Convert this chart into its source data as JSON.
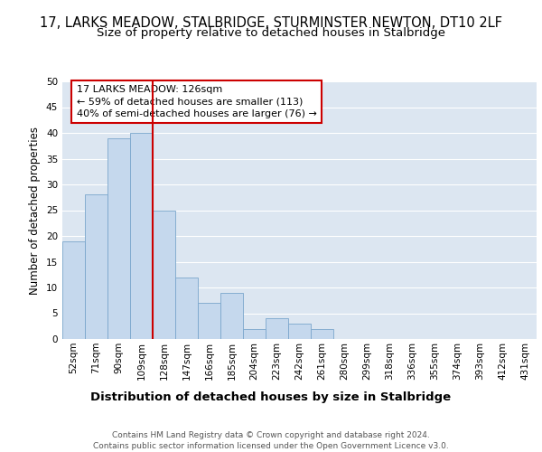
{
  "title": "17, LARKS MEADOW, STALBRIDGE, STURMINSTER NEWTON, DT10 2LF",
  "subtitle": "Size of property relative to detached houses in Stalbridge",
  "xlabel": "Distribution of detached houses by size in Stalbridge",
  "ylabel": "Number of detached properties",
  "categories": [
    "52sqm",
    "71sqm",
    "90sqm",
    "109sqm",
    "128sqm",
    "147sqm",
    "166sqm",
    "185sqm",
    "204sqm",
    "223sqm",
    "242sqm",
    "261sqm",
    "280sqm",
    "299sqm",
    "318sqm",
    "336sqm",
    "355sqm",
    "374sqm",
    "393sqm",
    "412sqm",
    "431sqm"
  ],
  "values": [
    19,
    28,
    39,
    40,
    25,
    12,
    7,
    9,
    2,
    4,
    3,
    2,
    0,
    0,
    0,
    0,
    0,
    0,
    0,
    0,
    0
  ],
  "bar_color": "#c5d8ed",
  "bar_edge_color": "#7aa6cc",
  "background_color": "#dce6f1",
  "grid_color": "#ffffff",
  "vline_x_index": 4,
  "annotation_line1": "17 LARKS MEADOW: 126sqm",
  "annotation_line2": "← 59% of detached houses are smaller (113)",
  "annotation_line3": "40% of semi-detached houses are larger (76) →",
  "annotation_box_color": "#ffffff",
  "annotation_box_edge_color": "#cc0000",
  "vline_color": "#cc0000",
  "ylim": [
    0,
    50
  ],
  "yticks": [
    0,
    5,
    10,
    15,
    20,
    25,
    30,
    35,
    40,
    45,
    50
  ],
  "footer_text": "Contains HM Land Registry data © Crown copyright and database right 2024.\nContains public sector information licensed under the Open Government Licence v3.0.",
  "title_fontsize": 10.5,
  "subtitle_fontsize": 9.5,
  "ylabel_fontsize": 8.5,
  "xlabel_fontsize": 9.5,
  "tick_fontsize": 7.5,
  "annotation_fontsize": 8.0,
  "footer_fontsize": 6.5
}
